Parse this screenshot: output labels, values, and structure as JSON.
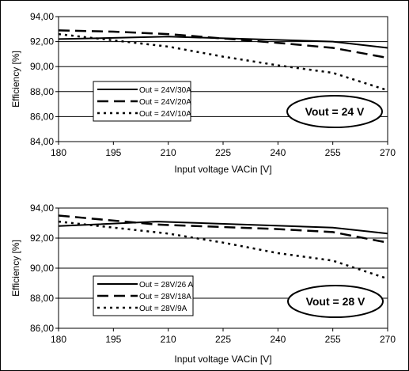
{
  "chart_data": [
    {
      "type": "line",
      "xlabel": "Input voltage VACin [V]",
      "ylabel": "Efficiency [%]",
      "xlim": [
        180,
        270
      ],
      "ylim": [
        84,
        94
      ],
      "x_ticks": [
        "180",
        "195",
        "210",
        "225",
        "240",
        "255",
        "270"
      ],
      "y_ticks": [
        "84,00",
        "86,00",
        "88,00",
        "90,00",
        "92,00",
        "94,00"
      ],
      "grid": "horizontal",
      "legend_position": "lower-left",
      "annotation": "Vout = 24 V",
      "series": [
        {
          "name": "Out = 24V/30A",
          "style": "solid",
          "x": [
            180,
            210,
            255,
            270
          ],
          "y": [
            92.2,
            92.4,
            92.0,
            91.5
          ]
        },
        {
          "name": "Out = 24V/20A",
          "style": "dash",
          "x": [
            180,
            195,
            210,
            240,
            255,
            270
          ],
          "y": [
            92.9,
            92.8,
            92.6,
            91.9,
            91.5,
            90.7
          ]
        },
        {
          "name": "Out = 24V/10A",
          "style": "dot",
          "x": [
            180,
            195,
            210,
            225,
            240,
            255,
            270
          ],
          "y": [
            92.6,
            92.1,
            91.6,
            90.8,
            90.1,
            89.5,
            88.1
          ]
        }
      ]
    },
    {
      "type": "line",
      "xlabel": "Input voltage VACin [V]",
      "ylabel": "Efficiency [%]",
      "xlim": [
        180,
        270
      ],
      "ylim": [
        86,
        94
      ],
      "x_ticks": [
        "180",
        "195",
        "210",
        "225",
        "240",
        "255",
        "270"
      ],
      "y_ticks": [
        "86,00",
        "88,00",
        "90,00",
        "92,00",
        "94,00"
      ],
      "grid": "horizontal",
      "legend_position": "lower-left",
      "annotation": "Vout = 28 V",
      "series": [
        {
          "name": "Out = 28V/26 A",
          "style": "solid",
          "x": [
            180,
            207,
            255,
            270
          ],
          "y": [
            92.8,
            93.1,
            92.7,
            92.3
          ]
        },
        {
          "name": "Out = 28V/18A",
          "style": "dash",
          "x": [
            180,
            207,
            240,
            255,
            270
          ],
          "y": [
            93.5,
            92.9,
            92.6,
            92.4,
            91.7
          ]
        },
        {
          "name": "Out = 28V/9A",
          "style": "dot",
          "x": [
            180,
            195,
            210,
            225,
            240,
            255,
            270
          ],
          "y": [
            93.1,
            92.7,
            92.3,
            91.7,
            91.0,
            90.5,
            89.3
          ]
        }
      ]
    }
  ]
}
